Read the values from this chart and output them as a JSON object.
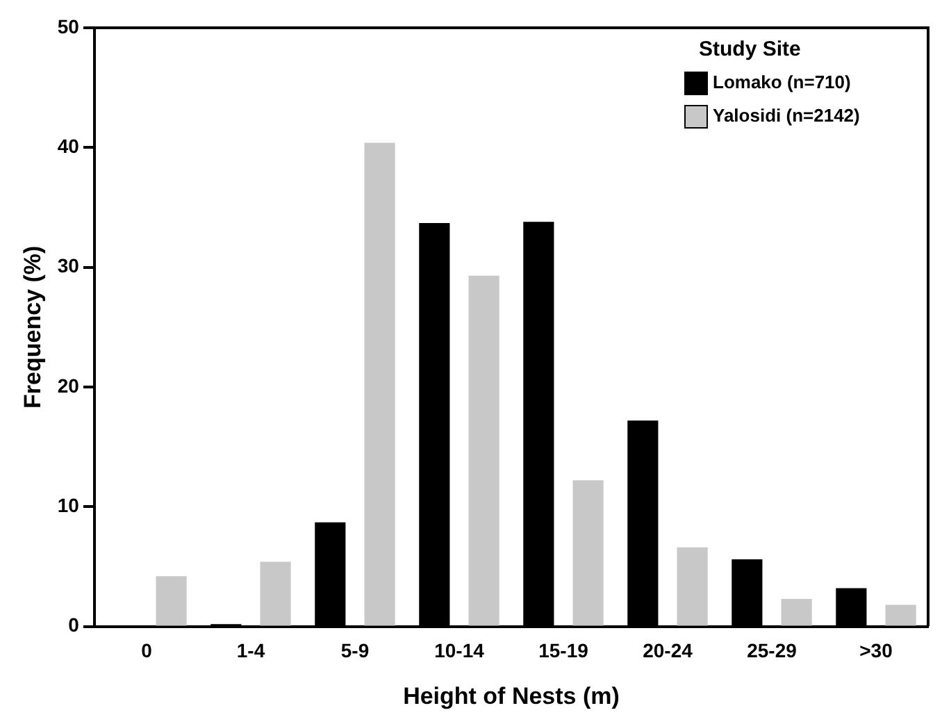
{
  "chart_data": {
    "type": "bar",
    "xlabel": "Height of Nests (m)",
    "ylabel": "Frequency (%)",
    "legend_title": "Study Site",
    "legend": "top right",
    "grid": false,
    "categories": [
      "0",
      "1-4",
      "5-9",
      "10-14",
      "15-19",
      "20-24",
      "25-29",
      ">30"
    ],
    "ylim": [
      0,
      50
    ],
    "yticks": [
      0,
      10,
      20,
      30,
      40,
      50
    ],
    "series": [
      {
        "name": "Lomako (n=710)",
        "color": "#000000",
        "values": [
          0,
          0.2,
          8.7,
          33.7,
          33.8,
          17.2,
          5.6,
          3.2
        ]
      },
      {
        "name": "Yalosidi (n=2142)",
        "color": "#c8c8c8",
        "values": [
          4.2,
          5.4,
          40.4,
          29.3,
          12.2,
          6.6,
          2.3,
          1.8
        ]
      }
    ]
  }
}
